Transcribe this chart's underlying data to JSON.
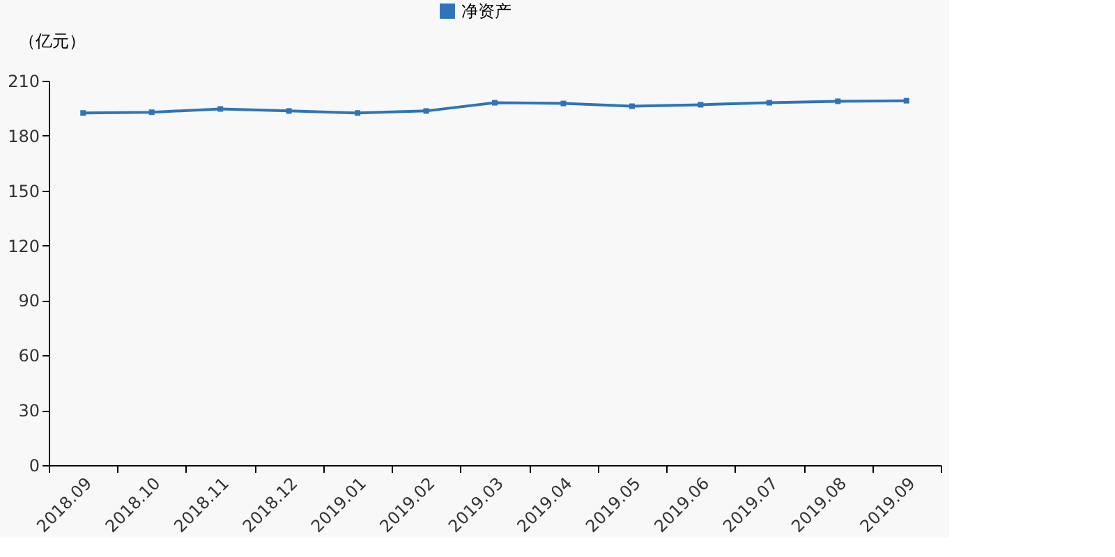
{
  "chart_data": {
    "type": "line",
    "ylabel": "（亿元）",
    "categories": [
      "2018.09",
      "2018.10",
      "2018.11",
      "2018.12",
      "2019.01",
      "2019.02",
      "2019.03",
      "2019.04",
      "2019.05",
      "2019.06",
      "2019.07",
      "2019.08",
      "2019.09"
    ],
    "series": [
      {
        "name": "净资产",
        "color": "#2f74b8",
        "values": [
          192.4,
          192.8,
          194.6,
          193.5,
          192.4,
          193.5,
          198.0,
          197.6,
          196.1,
          196.9,
          198.0,
          198.8,
          199.1
        ]
      }
    ],
    "ylim": [
      0,
      210
    ],
    "yticks": [
      0,
      30,
      60,
      90,
      120,
      150,
      180,
      210
    ],
    "grid": false,
    "legend": "top",
    "marker": "square",
    "line_style": "solid"
  }
}
